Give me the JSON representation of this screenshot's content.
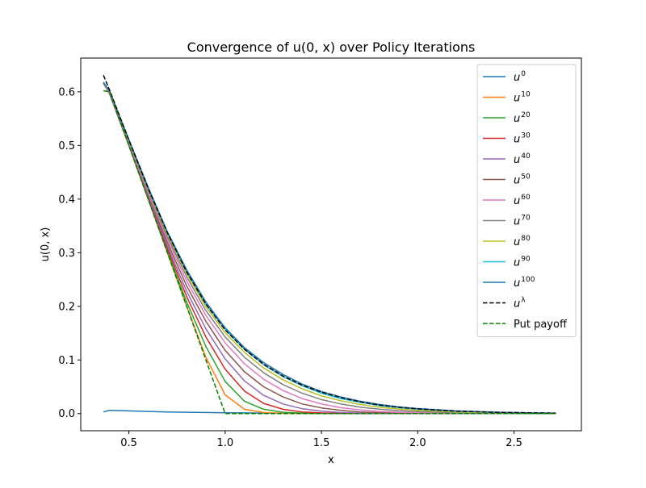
{
  "chart_data": {
    "type": "line",
    "title": "Convergence of u(0, x) over Policy Iterations",
    "xlabel": "x",
    "ylabel": "u(0, x)",
    "xlim": [
      0.25,
      2.85
    ],
    "ylim": [
      -0.032,
      0.663
    ],
    "xticks": [
      0.5,
      1.0,
      1.5,
      2.0,
      2.5
    ],
    "xtick_labels": [
      "0.5",
      "1.0",
      "1.5",
      "2.0",
      "2.5"
    ],
    "yticks": [
      0.0,
      0.1,
      0.2,
      0.3,
      0.4,
      0.5,
      0.6
    ],
    "ytick_labels": [
      "0.0",
      "0.1",
      "0.2",
      "0.3",
      "0.4",
      "0.5",
      "0.6"
    ],
    "grid": false,
    "legend_position": "top-right",
    "x": [
      0.368,
      0.4,
      0.5,
      0.6,
      0.7,
      0.8,
      0.9,
      1.0,
      1.1,
      1.2,
      1.3,
      1.4,
      1.5,
      1.6,
      1.7,
      1.8,
      1.9,
      2.0,
      2.2,
      2.4,
      2.6,
      2.718
    ],
    "series": [
      {
        "name": "u",
        "sup": "0",
        "color": "#1f77b4",
        "dash": false,
        "values": [
          0.003,
          0.006,
          0.005,
          0.004,
          0.003,
          0.0025,
          0.002,
          0.0015,
          0.0012,
          0.001,
          0.0008,
          0.0006,
          0.0005,
          0.0004,
          0.0003,
          0.0003,
          0.0002,
          0.0002,
          0.0001,
          0.0001,
          0.0,
          0.0
        ]
      },
      {
        "name": "u",
        "sup": "10",
        "color": "#ff7f0e",
        "dash": false,
        "values": [
          0.616,
          0.596,
          0.5,
          0.4,
          0.3,
          0.2,
          0.105,
          0.035,
          0.008,
          0.002,
          0.0005,
          0.0002,
          0.0001,
          0.0,
          0.0,
          0.0,
          0.0,
          0.0,
          0.0,
          0.0,
          0.0,
          0.0
        ]
      },
      {
        "name": "u",
        "sup": "20",
        "color": "#2ca02c",
        "dash": false,
        "values": [
          0.616,
          0.596,
          0.5,
          0.4,
          0.303,
          0.208,
          0.125,
          0.06,
          0.023,
          0.008,
          0.0025,
          0.001,
          0.0003,
          0.0001,
          0.0,
          0.0,
          0.0,
          0.0,
          0.0,
          0.0,
          0.0,
          0.0
        ]
      },
      {
        "name": "u",
        "sup": "30",
        "color": "#d62728",
        "dash": false,
        "values": [
          0.616,
          0.596,
          0.5,
          0.402,
          0.308,
          0.218,
          0.143,
          0.083,
          0.042,
          0.019,
          0.008,
          0.003,
          0.0012,
          0.0005,
          0.0002,
          0.0001,
          0.0,
          0.0,
          0.0,
          0.0,
          0.0,
          0.0
        ]
      },
      {
        "name": "u",
        "sup": "40",
        "color": "#9467bd",
        "dash": false,
        "values": [
          0.616,
          0.596,
          0.501,
          0.405,
          0.313,
          0.228,
          0.158,
          0.102,
          0.061,
          0.034,
          0.018,
          0.009,
          0.0045,
          0.002,
          0.001,
          0.0005,
          0.0002,
          0.0001,
          0.0,
          0.0,
          0.0,
          0.0
        ]
      },
      {
        "name": "u",
        "sup": "50",
        "color": "#8c564b",
        "dash": false,
        "values": [
          0.616,
          0.597,
          0.503,
          0.408,
          0.319,
          0.238,
          0.172,
          0.118,
          0.078,
          0.05,
          0.031,
          0.018,
          0.0105,
          0.006,
          0.003,
          0.0018,
          0.001,
          0.0005,
          0.0001,
          0.0,
          0.0,
          0.0
        ]
      },
      {
        "name": "u",
        "sup": "60",
        "color": "#e377c2",
        "dash": false,
        "values": [
          0.617,
          0.598,
          0.505,
          0.411,
          0.325,
          0.247,
          0.183,
          0.132,
          0.093,
          0.064,
          0.043,
          0.028,
          0.018,
          0.011,
          0.007,
          0.004,
          0.0025,
          0.0015,
          0.0005,
          0.0002,
          0.0001,
          0.0
        ]
      },
      {
        "name": "u",
        "sup": "70",
        "color": "#7f7f7f",
        "dash": false,
        "values": [
          0.617,
          0.599,
          0.507,
          0.415,
          0.33,
          0.255,
          0.192,
          0.143,
          0.105,
          0.076,
          0.054,
          0.038,
          0.026,
          0.018,
          0.012,
          0.0082,
          0.0055,
          0.0036,
          0.0016,
          0.0007,
          0.0003,
          0.0002
        ]
      },
      {
        "name": "u",
        "sup": "80",
        "color": "#bcbd22",
        "dash": false,
        "values": [
          0.617,
          0.6,
          0.508,
          0.418,
          0.334,
          0.261,
          0.199,
          0.151,
          0.114,
          0.085,
          0.063,
          0.046,
          0.033,
          0.024,
          0.017,
          0.012,
          0.0085,
          0.006,
          0.0029,
          0.0014,
          0.0007,
          0.0004
        ]
      },
      {
        "name": "u",
        "sup": "90",
        "color": "#17becf",
        "dash": false,
        "values": [
          0.618,
          0.601,
          0.51,
          0.42,
          0.337,
          0.265,
          0.204,
          0.157,
          0.12,
          0.091,
          0.069,
          0.052,
          0.038,
          0.028,
          0.021,
          0.015,
          0.011,
          0.0082,
          0.0043,
          0.0022,
          0.0011,
          0.0007
        ]
      },
      {
        "name": "u",
        "sup": "100",
        "color": "#1f77b4",
        "dash": false,
        "values": [
          0.618,
          0.601,
          0.511,
          0.422,
          0.339,
          0.268,
          0.208,
          0.16,
          0.123,
          0.095,
          0.073,
          0.055,
          0.041,
          0.031,
          0.023,
          0.017,
          0.0125,
          0.0093,
          0.005,
          0.0026,
          0.0013,
          0.0008
        ]
      },
      {
        "name": "u",
        "sup": "λ",
        "color": "#000000",
        "dash": true,
        "values": [
          0.631,
          0.603,
          0.51,
          0.42,
          0.337,
          0.264,
          0.204,
          0.156,
          0.12,
          0.092,
          0.07,
          0.053,
          0.04,
          0.03,
          0.022,
          0.016,
          0.0118,
          0.0087,
          0.0046,
          0.0024,
          0.0012,
          0.0008
        ]
      },
      {
        "name": "Put payoff",
        "sup": "",
        "color": "#008000",
        "dash": true,
        "values": [
          0.602,
          0.6,
          0.5,
          0.4,
          0.3,
          0.2,
          0.1,
          0.0,
          0.0,
          0.0,
          0.0,
          0.0,
          0.0,
          0.0,
          0.0,
          0.0,
          0.0,
          0.0,
          0.0,
          0.0,
          0.0,
          0.0
        ]
      }
    ]
  }
}
